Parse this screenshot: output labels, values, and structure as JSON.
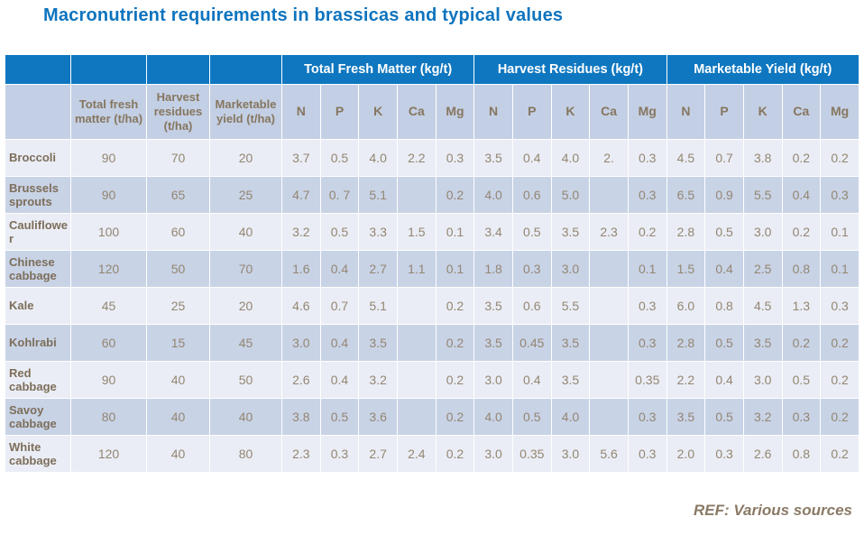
{
  "title": "Macronutrient requirements in brassicas and typical values",
  "footer": {
    "ref": "REF: Various sources"
  },
  "colors": {
    "title_blue": "#0e74be",
    "header_blue": "#0f77c0",
    "subheader_bg": "#c3cfe4",
    "row_light": "#eaedf5",
    "row_dark": "#c8d3e6",
    "text_brown": "#86765f",
    "gridline": "#ffffff"
  },
  "chart_data": {
    "type": "table",
    "title": "Macronutrient requirements in brassicas and typical values",
    "group_headers": [
      "Total Fresh Matter (kg/t)",
      "Harvest Residues (kg/t)",
      "Marketable Yield (kg/t)"
    ],
    "subheaders": [
      "Total fresh matter (t/ha)",
      "Harvest residues (t/ha)",
      "Marketable yield (t/ha)"
    ],
    "nutrients": [
      "N",
      "P",
      "K",
      "Ca",
      "Mg"
    ],
    "rows": [
      {
        "name": "Broccoli",
        "values": [
          "90",
          "70",
          "20",
          "3.7",
          "0.5",
          "4.0",
          "2.2",
          "0.3",
          "3.5",
          "0.4",
          "4.0",
          "2.",
          "0.3",
          "4.5",
          "0.7",
          "3.8",
          "0.2",
          "0.2"
        ]
      },
      {
        "name": "Brussels sprouts",
        "values": [
          "90",
          "65",
          "25",
          "4.7",
          "0. 7",
          "5.1",
          "",
          "0.2",
          "4.0",
          "0.6",
          "5.0",
          "",
          "0.3",
          "6.5",
          "0.9",
          "5.5",
          "0.4",
          "0.3"
        ]
      },
      {
        "name": "Cauliflower",
        "values": [
          "100",
          "60",
          "40",
          "3.2",
          "0.5",
          "3.3",
          "1.5",
          "0.1",
          "3.4",
          "0.5",
          "3.5",
          "2.3",
          "0.2",
          "2.8",
          "0.5",
          "3.0",
          "0.2",
          "0.1"
        ]
      },
      {
        "name": "Chinese cabbage",
        "values": [
          "120",
          "50",
          "70",
          "1.6",
          "0.4",
          "2.7",
          "1.1",
          "0.1",
          "1.8",
          "0.3",
          "3.0",
          "",
          "0.1",
          "1.5",
          "0.4",
          "2.5",
          "0.8",
          "0.1"
        ]
      },
      {
        "name": "Kale",
        "values": [
          "45",
          "25",
          "20",
          "4.6",
          "0.7",
          "5.1",
          "",
          "0.2",
          "3.5",
          "0.6",
          "5.5",
          "",
          "0.3",
          "6.0",
          "0.8",
          "4.5",
          "1.3",
          "0.3"
        ]
      },
      {
        "name": "Kohlrabi",
        "values": [
          "60",
          "15",
          "45",
          "3.0",
          "0.4",
          "3.5",
          "",
          "0.2",
          "3.5",
          "0.45",
          "3.5",
          "",
          "0.3",
          "2.8",
          "0.5",
          "3.5",
          "0.2",
          "0.2"
        ]
      },
      {
        "name": "Red cabbage",
        "values": [
          "90",
          "40",
          "50",
          "2.6",
          "0.4",
          "3.2",
          "",
          "0.2",
          "3.0",
          "0.4",
          "3.5",
          "",
          "0.35",
          "2.2",
          "0.4",
          "3.0",
          "0.5",
          "0.2"
        ]
      },
      {
        "name": "Savoy cabbage",
        "values": [
          "80",
          "40",
          "40",
          "3.8",
          "0.5",
          "3.6",
          "",
          "0.2",
          "4.0",
          "0.5",
          "4.0",
          "",
          "0.3",
          "3.5",
          "0.5",
          "3.2",
          "0.3",
          "0.2"
        ]
      },
      {
        "name": "White cabbage",
        "values": [
          "120",
          "40",
          "80",
          "2.3",
          "0.3",
          "2.7",
          "2.4",
          "0.2",
          "3.0",
          "0.35",
          "3.0",
          "5.6",
          "0.3",
          "2.0",
          "0.3",
          "2.6",
          "0.8",
          "0.2"
        ]
      }
    ]
  }
}
